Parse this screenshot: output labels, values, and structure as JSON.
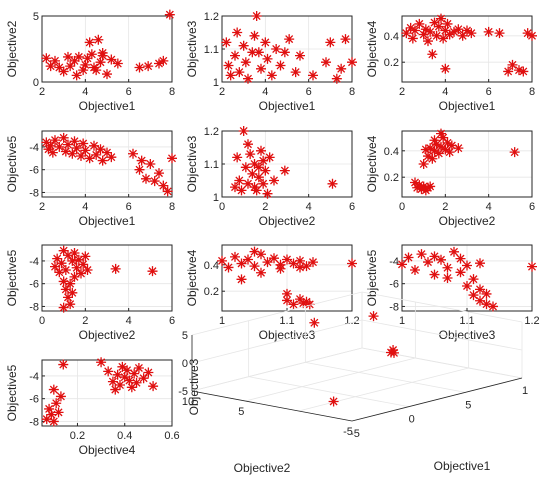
{
  "colors": {
    "marker": "#e01010",
    "axis": "#262626",
    "grid": "#e6e6e6",
    "background": "#ffffff"
  },
  "chart_data": [
    {
      "type": "scatter",
      "marker": "asterisk",
      "xlabel": "Objective1",
      "ylabel": "Objective2",
      "xlim": [
        2,
        8
      ],
      "ylim": [
        0,
        5
      ],
      "xticks": [
        "2",
        "4",
        "6",
        "8"
      ],
      "yticks": [
        "0",
        "5"
      ],
      "points": [
        [
          2.2,
          1.8
        ],
        [
          2.4,
          1.2
        ],
        [
          2.6,
          1.6
        ],
        [
          2.8,
          1.1
        ],
        [
          3.0,
          0.8
        ],
        [
          3.2,
          1.9
        ],
        [
          3.3,
          1.2
        ],
        [
          3.5,
          1.6
        ],
        [
          3.7,
          1.9
        ],
        [
          3.9,
          0.9
        ],
        [
          4.0,
          1.3
        ],
        [
          4.1,
          1.8
        ],
        [
          4.3,
          2.1
        ],
        [
          4.4,
          1.1
        ],
        [
          4.5,
          0.9
        ],
        [
          4.7,
          1.5
        ],
        [
          4.8,
          2.2
        ],
        [
          5.0,
          0.6
        ],
        [
          5.2,
          1.7
        ],
        [
          5.5,
          1.4
        ],
        [
          3.6,
          0.5
        ],
        [
          4.2,
          3.0
        ],
        [
          4.6,
          3.2
        ],
        [
          4.8,
          2.0
        ],
        [
          6.5,
          1.1
        ],
        [
          6.9,
          1.2
        ],
        [
          7.4,
          1.4
        ],
        [
          7.6,
          1.6
        ],
        [
          7.9,
          5.1
        ]
      ]
    },
    {
      "type": "scatter",
      "marker": "asterisk",
      "xlabel": "Objective1",
      "ylabel": "Objective3",
      "xlim": [
        2,
        8
      ],
      "ylim": [
        1,
        1.2
      ],
      "xticks": [
        "2",
        "4",
        "6",
        "8"
      ],
      "yticks": [
        "1",
        "1.1",
        "1.2"
      ],
      "points": [
        [
          2.2,
          1.12
        ],
        [
          2.3,
          1.05
        ],
        [
          2.4,
          1.02
        ],
        [
          2.6,
          1.08
        ],
        [
          2.8,
          1.03
        ],
        [
          3.0,
          1.11
        ],
        [
          3.1,
          1.06
        ],
        [
          3.2,
          1.01
        ],
        [
          3.4,
          1.09
        ],
        [
          3.5,
          1.14
        ],
        [
          3.6,
          1.2
        ],
        [
          3.8,
          1.04
        ],
        [
          4.0,
          1.12
        ],
        [
          4.1,
          1.07
        ],
        [
          4.3,
          1.02
        ],
        [
          4.5,
          1.1
        ],
        [
          4.7,
          1.05
        ],
        [
          4.9,
          1.09
        ],
        [
          5.1,
          1.13
        ],
        [
          5.4,
          1.03
        ],
        [
          5.6,
          1.08
        ],
        [
          6.2,
          1.02
        ],
        [
          6.8,
          1.06
        ],
        [
          7.0,
          1.12
        ],
        [
          7.3,
          1.01
        ],
        [
          7.5,
          1.04
        ],
        [
          7.7,
          1.13
        ],
        [
          8.0,
          1.06
        ],
        [
          2.7,
          1.15
        ],
        [
          3.7,
          1.09
        ]
      ]
    },
    {
      "type": "scatter",
      "marker": "asterisk",
      "xlabel": "Objective1",
      "ylabel": "Objective4",
      "xlim": [
        2,
        8
      ],
      "ylim": [
        0.05,
        0.55
      ],
      "xticks": [
        "2",
        "4",
        "6",
        "8"
      ],
      "yticks": [
        "0.2",
        "0.4"
      ],
      "points": [
        [
          2.2,
          0.42
        ],
        [
          2.4,
          0.46
        ],
        [
          2.5,
          0.38
        ],
        [
          2.6,
          0.44
        ],
        [
          2.8,
          0.49
        ],
        [
          3.0,
          0.41
        ],
        [
          3.1,
          0.45
        ],
        [
          3.2,
          0.36
        ],
        [
          3.3,
          0.43
        ],
        [
          3.5,
          0.5
        ],
        [
          3.6,
          0.4
        ],
        [
          3.7,
          0.47
        ],
        [
          3.8,
          0.53
        ],
        [
          3.9,
          0.38
        ],
        [
          4.0,
          0.44
        ],
        [
          4.1,
          0.49
        ],
        [
          4.2,
          0.41
        ],
        [
          4.4,
          0.43
        ],
        [
          4.6,
          0.45
        ],
        [
          4.8,
          0.4
        ],
        [
          5.0,
          0.44
        ],
        [
          5.2,
          0.42
        ],
        [
          3.4,
          0.26
        ],
        [
          4.0,
          0.15
        ],
        [
          6.0,
          0.43
        ],
        [
          6.5,
          0.42
        ],
        [
          6.9,
          0.13
        ],
        [
          7.1,
          0.18
        ],
        [
          7.4,
          0.14
        ],
        [
          7.6,
          0.13
        ],
        [
          7.8,
          0.42
        ],
        [
          8.0,
          0.4
        ]
      ]
    },
    {
      "type": "scatter",
      "marker": "asterisk",
      "xlabel": "Objective1",
      "ylabel": "Objective5",
      "xlim": [
        2,
        8
      ],
      "ylim": [
        -8.4,
        -2.6
      ],
      "xticks": [
        "2",
        "4",
        "6",
        "8"
      ],
      "yticks": [
        "-4",
        "-6",
        "-8"
      ],
      "points": [
        [
          2.2,
          -3.6
        ],
        [
          2.3,
          -4.2
        ],
        [
          2.4,
          -3.9
        ],
        [
          2.5,
          -4.5
        ],
        [
          2.6,
          -3.4
        ],
        [
          2.8,
          -4.0
        ],
        [
          3.0,
          -3.2
        ],
        [
          3.1,
          -4.4
        ],
        [
          3.2,
          -3.8
        ],
        [
          3.4,
          -4.6
        ],
        [
          3.5,
          -3.5
        ],
        [
          3.6,
          -4.1
        ],
        [
          3.8,
          -4.8
        ],
        [
          3.9,
          -3.7
        ],
        [
          4.0,
          -4.3
        ],
        [
          4.2,
          -5.0
        ],
        [
          4.4,
          -3.9
        ],
        [
          4.5,
          -4.7
        ],
        [
          4.7,
          -4.2
        ],
        [
          4.8,
          -5.2
        ],
        [
          5.0,
          -4.5
        ],
        [
          5.2,
          -4.9
        ],
        [
          6.2,
          -4.6
        ],
        [
          6.5,
          -6.0
        ],
        [
          6.6,
          -5.2
        ],
        [
          6.8,
          -6.8
        ],
        [
          7.0,
          -5.5
        ],
        [
          7.2,
          -7.0
        ],
        [
          7.4,
          -6.3
        ],
        [
          7.6,
          -7.4
        ],
        [
          7.8,
          -7.9
        ],
        [
          8.0,
          -5.0
        ]
      ]
    },
    {
      "type": "scatter",
      "marker": "asterisk",
      "xlabel": "Objective2",
      "ylabel": "Objective3",
      "xlim": [
        0,
        6
      ],
      "ylim": [
        1,
        1.2
      ],
      "xticks": [
        "0",
        "2",
        "4",
        "6"
      ],
      "yticks": [
        "1",
        "1.1",
        "1.2"
      ],
      "points": [
        [
          0.7,
          1.12
        ],
        [
          0.8,
          1.05
        ],
        [
          0.9,
          1.02
        ],
        [
          1.0,
          1.2
        ],
        [
          1.1,
          1.09
        ],
        [
          1.2,
          1.04
        ],
        [
          1.3,
          1.13
        ],
        [
          1.4,
          1.07
        ],
        [
          1.5,
          1.1
        ],
        [
          1.6,
          1.02
        ],
        [
          1.7,
          1.06
        ],
        [
          1.8,
          1.14
        ],
        [
          1.9,
          1.04
        ],
        [
          2.0,
          1.08
        ],
        [
          2.1,
          1.01
        ],
        [
          2.2,
          1.12
        ],
        [
          2.4,
          1.05
        ],
        [
          1.2,
          1.16
        ],
        [
          1.5,
          1.03
        ],
        [
          1.7,
          1.09
        ],
        [
          2.9,
          1.08
        ],
        [
          5.1,
          1.04
        ],
        [
          0.6,
          1.03
        ],
        [
          1.9,
          1.11
        ]
      ]
    },
    {
      "type": "scatter",
      "marker": "asterisk",
      "xlabel": "Objective2",
      "ylabel": "Objective4",
      "xlim": [
        0,
        6
      ],
      "ylim": [
        0.05,
        0.55
      ],
      "xticks": [
        "0",
        "2",
        "4",
        "6"
      ],
      "yticks": [
        "0.2",
        "0.4"
      ],
      "points": [
        [
          0.6,
          0.16
        ],
        [
          0.7,
          0.12
        ],
        [
          0.8,
          0.14
        ],
        [
          0.9,
          0.11
        ],
        [
          1.0,
          0.13
        ],
        [
          1.1,
          0.1
        ],
        [
          1.2,
          0.12
        ],
        [
          1.3,
          0.13
        ],
        [
          1.0,
          0.3
        ],
        [
          1.2,
          0.36
        ],
        [
          1.3,
          0.42
        ],
        [
          1.4,
          0.34
        ],
        [
          1.5,
          0.4
        ],
        [
          1.6,
          0.45
        ],
        [
          1.7,
          0.38
        ],
        [
          1.8,
          0.43
        ],
        [
          1.9,
          0.5
        ],
        [
          2.0,
          0.41
        ],
        [
          2.1,
          0.46
        ],
        [
          2.2,
          0.39
        ],
        [
          2.3,
          0.44
        ],
        [
          2.6,
          0.42
        ],
        [
          1.5,
          0.48
        ],
        [
          1.8,
          0.53
        ],
        [
          5.2,
          0.39
        ],
        [
          1.1,
          0.41
        ]
      ]
    },
    {
      "type": "scatter",
      "marker": "asterisk",
      "xlabel": "Objective2",
      "ylabel": "Objective5",
      "xlim": [
        0,
        6
      ],
      "ylim": [
        -8.4,
        -2.6
      ],
      "xticks": [
        "0",
        "2",
        "4",
        "6"
      ],
      "yticks": [
        "-4",
        "-6",
        "-8"
      ],
      "points": [
        [
          0.6,
          -4.5
        ],
        [
          0.7,
          -3.8
        ],
        [
          0.8,
          -5.0
        ],
        [
          0.9,
          -4.2
        ],
        [
          1.0,
          -3.1
        ],
        [
          1.0,
          -5.8
        ],
        [
          1.1,
          -6.5
        ],
        [
          1.1,
          -4.8
        ],
        [
          1.2,
          -7.2
        ],
        [
          1.2,
          -3.5
        ],
        [
          1.3,
          -6.0
        ],
        [
          1.3,
          -7.8
        ],
        [
          1.4,
          -4.0
        ],
        [
          1.4,
          -6.8
        ],
        [
          1.5,
          -3.3
        ],
        [
          1.5,
          -5.4
        ],
        [
          1.6,
          -4.6
        ],
        [
          1.7,
          -3.9
        ],
        [
          1.8,
          -5.1
        ],
        [
          1.9,
          -4.3
        ],
        [
          2.0,
          -3.6
        ],
        [
          2.1,
          -4.8
        ],
        [
          3.4,
          -4.7
        ],
        [
          5.1,
          -4.9
        ],
        [
          1.0,
          -8.1
        ]
      ]
    },
    {
      "type": "scatter",
      "marker": "asterisk",
      "xlabel": "Objective3",
      "ylabel": "Objective4",
      "xlim": [
        1,
        1.2
      ],
      "ylim": [
        0.05,
        0.55
      ],
      "xticks": [
        "1",
        "1.1",
        "1.2"
      ],
      "yticks": [
        "0.2",
        "0.4"
      ],
      "points": [
        [
          1.0,
          0.43
        ],
        [
          1.01,
          0.38
        ],
        [
          1.02,
          0.46
        ],
        [
          1.03,
          0.41
        ],
        [
          1.04,
          0.44
        ],
        [
          1.05,
          0.39
        ],
        [
          1.06,
          0.48
        ],
        [
          1.07,
          0.42
        ],
        [
          1.08,
          0.45
        ],
        [
          1.09,
          0.4
        ],
        [
          1.1,
          0.44
        ],
        [
          1.11,
          0.41
        ],
        [
          1.12,
          0.43
        ],
        [
          1.13,
          0.39
        ],
        [
          1.14,
          0.42
        ],
        [
          1.03,
          0.29
        ],
        [
          1.06,
          0.34
        ],
        [
          1.09,
          0.37
        ],
        [
          1.1,
          0.13
        ],
        [
          1.11,
          0.1
        ],
        [
          1.12,
          0.14
        ],
        [
          1.125,
          0.11
        ],
        [
          1.13,
          0.12
        ],
        [
          1.135,
          0.1
        ],
        [
          1.1,
          0.18
        ],
        [
          1.2,
          0.41
        ],
        [
          1.05,
          0.5
        ],
        [
          1.12,
          0.38
        ]
      ]
    },
    {
      "type": "scatter",
      "marker": "asterisk",
      "xlabel": "Objective3",
      "ylabel": "Objective5",
      "xlim": [
        1,
        1.2
      ],
      "ylim": [
        -8.4,
        -2.6
      ],
      "xticks": [
        "1",
        "1.1",
        "1.2"
      ],
      "yticks": [
        "-4",
        "-6",
        "-8"
      ],
      "points": [
        [
          1.0,
          -4.3
        ],
        [
          1.01,
          -3.7
        ],
        [
          1.02,
          -4.8
        ],
        [
          1.03,
          -3.4
        ],
        [
          1.04,
          -4.1
        ],
        [
          1.05,
          -5.2
        ],
        [
          1.06,
          -3.9
        ],
        [
          1.07,
          -4.6
        ],
        [
          1.08,
          -3.2
        ],
        [
          1.09,
          -5.0
        ],
        [
          1.1,
          -4.4
        ],
        [
          1.1,
          -6.2
        ],
        [
          1.11,
          -5.6
        ],
        [
          1.11,
          -7.0
        ],
        [
          1.12,
          -6.5
        ],
        [
          1.12,
          -7.5
        ],
        [
          1.13,
          -7.8
        ],
        [
          1.13,
          -6.9
        ],
        [
          1.14,
          -8.0
        ],
        [
          1.07,
          -5.5
        ],
        [
          1.05,
          -3.6
        ],
        [
          1.2,
          -4.5
        ],
        [
          1.09,
          -3.8
        ],
        [
          1.12,
          -4.2
        ]
      ]
    },
    {
      "type": "scatter",
      "marker": "asterisk",
      "xlabel": "Objective4",
      "ylabel": "Objective5",
      "xlim": [
        0.05,
        0.6
      ],
      "ylim": [
        -8.4,
        -2.6
      ],
      "xticks": [
        "0.2",
        "0.4",
        "0.6"
      ],
      "yticks": [
        "-4",
        "-6",
        "-8"
      ],
      "points": [
        [
          0.07,
          -7.8
        ],
        [
          0.08,
          -6.9
        ],
        [
          0.09,
          -7.4
        ],
        [
          0.1,
          -8.0
        ],
        [
          0.11,
          -6.4
        ],
        [
          0.12,
          -7.2
        ],
        [
          0.13,
          -5.8
        ],
        [
          0.14,
          -3.0
        ],
        [
          0.1,
          -5.2
        ],
        [
          0.3,
          -2.8
        ],
        [
          0.33,
          -3.6
        ],
        [
          0.35,
          -4.5
        ],
        [
          0.37,
          -3.9
        ],
        [
          0.38,
          -4.8
        ],
        [
          0.39,
          -3.2
        ],
        [
          0.4,
          -4.1
        ],
        [
          0.41,
          -3.5
        ],
        [
          0.42,
          -4.4
        ],
        [
          0.43,
          -5.0
        ],
        [
          0.44,
          -3.8
        ],
        [
          0.45,
          -4.6
        ],
        [
          0.46,
          -3.3
        ],
        [
          0.48,
          -4.2
        ],
        [
          0.5,
          -3.7
        ],
        [
          0.52,
          -4.9
        ],
        [
          0.36,
          -5.2
        ]
      ]
    },
    {
      "type": "scatter3d",
      "marker": "asterisk",
      "xlabel": "Objective1",
      "ylabel": "Objective2",
      "zlabel": "Objective3",
      "xlim": [
        -5,
        10
      ],
      "ylim": [
        -5,
        10
      ],
      "zlim": [
        -5,
        5
      ],
      "xticks": [
        "-5",
        "0",
        "5",
        "1"
      ],
      "yticks": [
        "-5",
        "5",
        "10"
      ],
      "zticks": [
        "-5",
        "0",
        "5"
      ],
      "points": [
        [
          2.5,
          6.5,
          4.6
        ],
        [
          6.5,
          5.2,
          4.2
        ],
        [
          3.8,
          0.5,
          1.2
        ],
        [
          3.9,
          0.8,
          0.6
        ],
        [
          3.6,
          0.2,
          0.9
        ],
        [
          -3.8,
          -2.0,
          -3.2
        ]
      ]
    }
  ]
}
